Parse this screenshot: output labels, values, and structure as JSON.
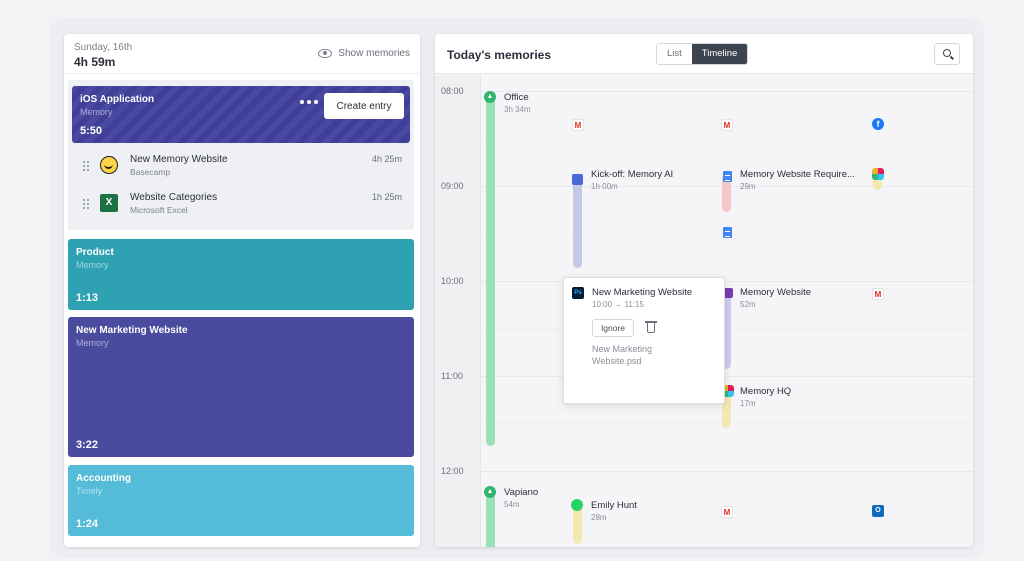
{
  "summary": {
    "date": "Sunday, 16th",
    "duration": "4h 59m",
    "show_memories": "Show memories"
  },
  "blocks": {
    "ios": {
      "title": "iOS Application",
      "subtitle": "Memory",
      "time": "5:50",
      "create_entry": "Create entry"
    },
    "entries": [
      {
        "name": "New Memory Website",
        "app": "Basecamp",
        "duration": "4h 25m",
        "icon": "basecamp-icon"
      },
      {
        "name": "Website Categories",
        "app": "Microsoft Excel",
        "duration": "1h 25m",
        "icon": "excel-icon",
        "icon_text": "X"
      }
    ],
    "product": {
      "title": "Product",
      "subtitle": "Memory",
      "time": "1:13"
    },
    "new_marketing": {
      "title": "New Marketing Website",
      "subtitle": "Memory",
      "time": "3:22"
    },
    "accounting": {
      "title": "Accounting",
      "subtitle": "Timely",
      "time": "1:24"
    }
  },
  "timeline": {
    "title": "Today's memories",
    "view_list": "List",
    "view_timeline": "Timeline",
    "hours": [
      "08:00",
      "09:00",
      "10:00",
      "11:00",
      "12:00"
    ],
    "events": {
      "office": {
        "title": "Office",
        "duration": "3h 34m"
      },
      "kickoff": {
        "title": "Kick-off: Memory AI",
        "duration": "1h 00m"
      },
      "website_req": {
        "title": "Memory Website Require...",
        "duration": "29m"
      },
      "memory_website": {
        "title": "Memory Website",
        "duration": "52m"
      },
      "memory_hq": {
        "title": "Memory HQ",
        "duration": "17m"
      },
      "vapiano": {
        "title": "Vapiano",
        "duration": "54m"
      },
      "emily": {
        "title": "Emily Hunt",
        "duration": "28m"
      }
    },
    "popup": {
      "title": "New Marketing Website",
      "time_range": "10:00 → 11:15",
      "ignore": "Ignore",
      "file": "New Marketing Website.psd",
      "app_icon_text": "Ps"
    },
    "icon_labels": {
      "gmail": "M",
      "facebook": "f",
      "outlook": "O"
    }
  },
  "colors": {
    "ios_block": "#3f3f9a",
    "product_block": "#2ea2b3",
    "new_marketing_block": "#4a4a9f",
    "accounting_block": "#54bcd8",
    "office_bar": "#9be0b8",
    "kickoff_bar": "#c3c9e6",
    "website_req_bar": "#f4c8c8",
    "memory_website_bar": "#cfcdf0",
    "memory_hq_bar": "#f3e8b0"
  }
}
